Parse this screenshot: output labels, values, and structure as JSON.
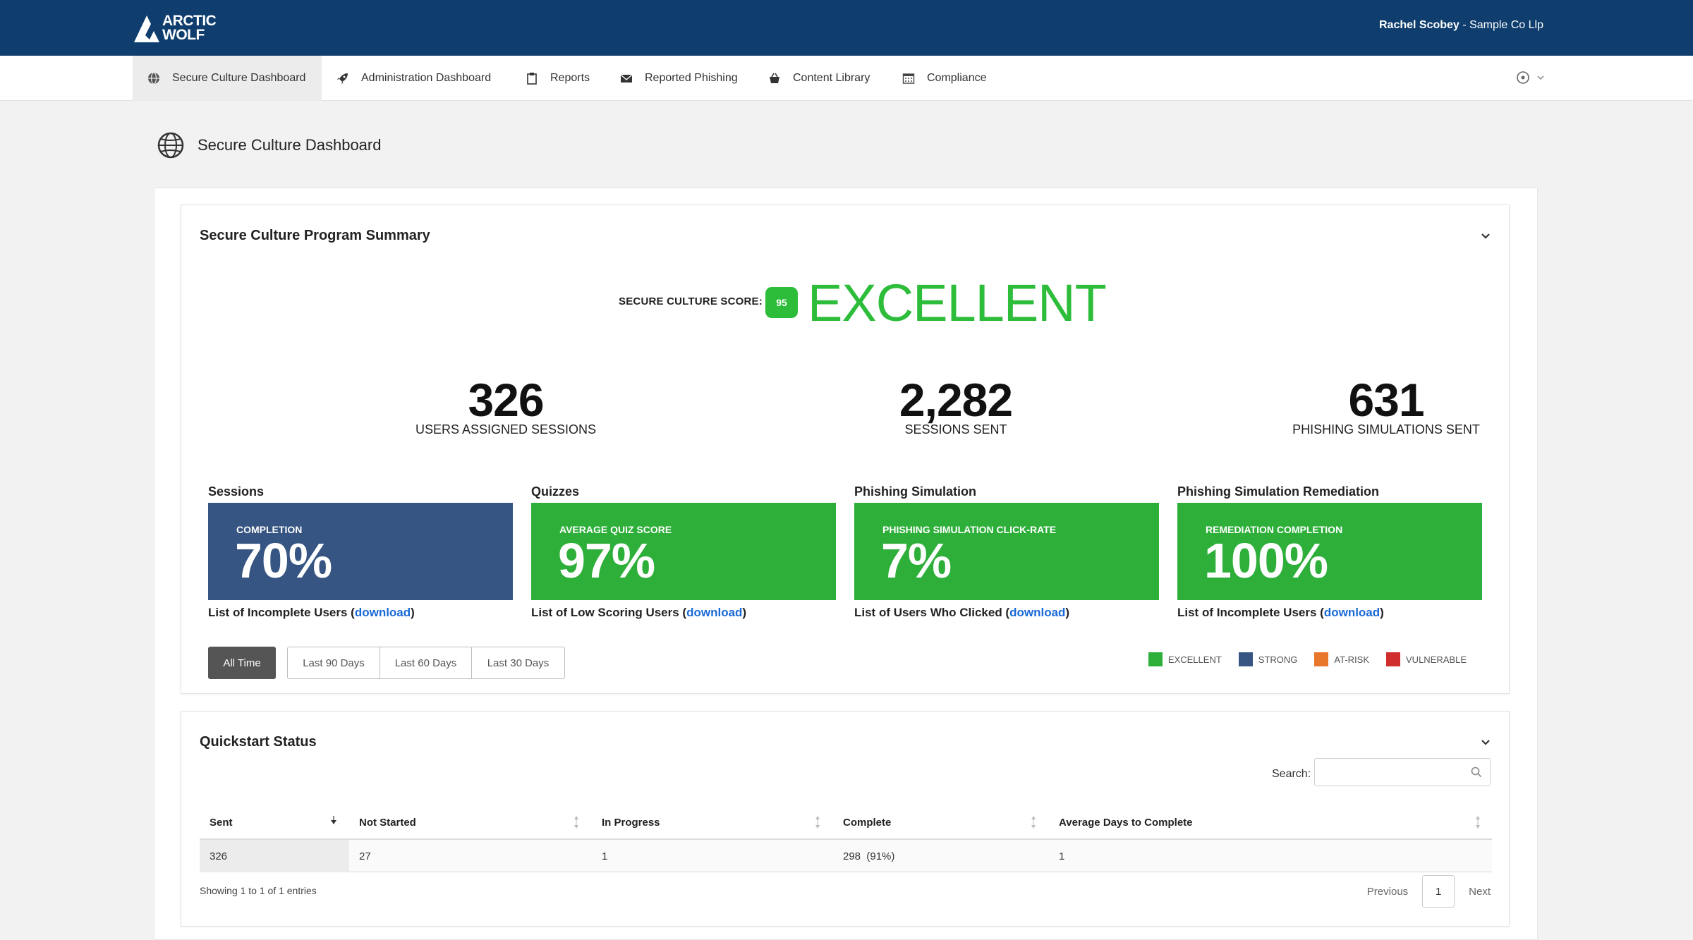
{
  "header": {
    "logo_text_1": "ARCTIC",
    "logo_text_2": "WOLF",
    "user_name": "Rachel Scobey",
    "org_name": "- Sample Co Llp"
  },
  "nav": {
    "items": [
      {
        "label": "Secure Culture Dashboard",
        "icon": "globe-icon",
        "active": true
      },
      {
        "label": "Administration Dashboard",
        "icon": "rocket-icon",
        "active": false
      },
      {
        "label": "Reports",
        "icon": "clipboard-icon",
        "active": false
      },
      {
        "label": "Reported Phishing",
        "icon": "envelope-icon",
        "active": false
      },
      {
        "label": "Content Library",
        "icon": "basket-icon",
        "active": false
      },
      {
        "label": "Compliance",
        "icon": "calendar-icon",
        "active": false
      }
    ],
    "settings_icon": "gear-icon"
  },
  "page": {
    "title": "Secure Culture Dashboard",
    "title_icon": "globe-icon"
  },
  "summary": {
    "title": "Secure Culture Program Summary",
    "score_label": "SECURE CULTURE SCORE:",
    "score_value": "95",
    "score_word": "EXCELLENT",
    "stats": [
      {
        "value": "326",
        "label": "USERS ASSIGNED SESSIONS"
      },
      {
        "value": "2,282",
        "label": "SESSIONS SENT"
      },
      {
        "value": "631",
        "label": "PHISHING SIMULATIONS SENT"
      }
    ],
    "metrics": [
      {
        "section": "Sessions",
        "caption": "COMPLETION",
        "value": "70%",
        "color": "#365582",
        "link_prefix": "List of Incomplete Users (",
        "link_text": "download",
        "link_suffix": ")"
      },
      {
        "section": "Quizzes",
        "caption": "AVERAGE QUIZ SCORE",
        "value": "97%",
        "color": "#2eaf3a",
        "link_prefix": "List of Low Scoring Users (",
        "link_text": "download",
        "link_suffix": ")"
      },
      {
        "section": "Phishing Simulation",
        "caption": "PHISHING SIMULATION CLICK-RATE",
        "value": "7%",
        "color": "#2eaf3a",
        "link_prefix": "List of Users Who Clicked (",
        "link_text": "download",
        "link_suffix": ")"
      },
      {
        "section": "Phishing Simulation Remediation",
        "caption": "REMEDIATION COMPLETION",
        "value": "100%",
        "color": "#2eaf3a",
        "link_prefix": "List of Incomplete Users (",
        "link_text": "download",
        "link_suffix": ")"
      }
    ],
    "filters": [
      "All Time",
      "Last 90 Days",
      "Last 60 Days",
      "Last 30 Days"
    ],
    "active_filter": "All Time",
    "legend": [
      {
        "label": "EXCELLENT",
        "color": "#2eaf3a"
      },
      {
        "label": "STRONG",
        "color": "#365582"
      },
      {
        "label": "AT-RISK",
        "color": "#e8762b"
      },
      {
        "label": "VULNERABLE",
        "color": "#d02d2d"
      }
    ]
  },
  "quickstart": {
    "title": "Quickstart Status",
    "search_label": "Search:",
    "search_value": "",
    "columns": [
      "Sent",
      "Not Started",
      "In Progress",
      "Complete",
      "Average Days to Complete"
    ],
    "rows": [
      [
        "326",
        "27",
        "1",
        "298  (91%)",
        "1"
      ]
    ],
    "showing": "Showing 1 to 1 of 1 entries",
    "pager": {
      "previous": "Previous",
      "page": "1",
      "next": "Next"
    }
  }
}
